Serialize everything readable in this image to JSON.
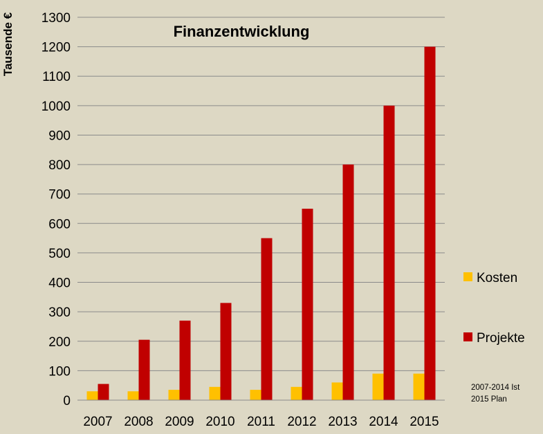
{
  "chart_data": {
    "type": "bar",
    "title": "Finanzentwicklung",
    "ylabel": "Tausende €",
    "xlabel": "",
    "categories": [
      "2007",
      "2008",
      "2009",
      "2010",
      "2011",
      "2012",
      "2013",
      "2014",
      "2015"
    ],
    "series": [
      {
        "name": "Kosten",
        "color": "#ffc000",
        "values": [
          30,
          30,
          35,
          45,
          35,
          45,
          60,
          90,
          90
        ]
      },
      {
        "name": "Projekte",
        "color": "#c00000",
        "values": [
          55,
          205,
          270,
          330,
          550,
          650,
          800,
          1000,
          1200
        ]
      }
    ],
    "ylim": [
      0,
      1300
    ],
    "yticks": [
      0,
      100,
      200,
      300,
      400,
      500,
      600,
      700,
      800,
      900,
      1000,
      1100,
      1200,
      1300
    ],
    "grid": true,
    "legend_position": "right",
    "note_lines": [
      "2007-2014  Ist",
      "2015  Plan"
    ]
  }
}
